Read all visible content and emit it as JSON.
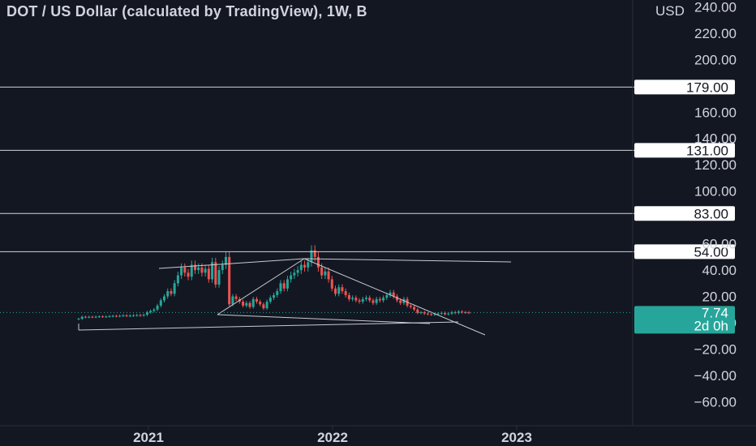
{
  "header": {
    "title": "DOT / US Dollar (calculated by TradingView), 1W, B",
    "currency": "USD"
  },
  "colors": {
    "background": "#131722",
    "up": "#26a69a",
    "down": "#ef5350",
    "text": "#d1d4dc",
    "line": "#d1d4dc",
    "price_tag": "#26a69a"
  },
  "chart_data": {
    "type": "candlestick",
    "title": "DOT / US Dollar (calculated by TradingView), 1W, B",
    "ylabel": "USD",
    "ylim": [
      -70,
      245
    ],
    "y_ticks": [
      240,
      220,
      200,
      160,
      140,
      120,
      100,
      60,
      40,
      20,
      0,
      -20,
      -40,
      -60
    ],
    "y_tick_labels": [
      "240.00",
      "220.00",
      "200.00",
      "160.00",
      "140.00",
      "120.00",
      "100.00",
      "60.00",
      "40.00",
      "20.00",
      "0.00",
      "−20.00",
      "−40.00",
      "−60.00"
    ],
    "x_ticks": [
      "2021",
      "2022",
      "2023"
    ],
    "grid": false,
    "horizontal_levels": [
      {
        "value": 179,
        "label": "179.00"
      },
      {
        "value": 131,
        "label": "131.00"
      },
      {
        "value": 83,
        "label": "83.00"
      },
      {
        "value": 54,
        "label": "54.00"
      }
    ],
    "last_price": {
      "value": 7.74,
      "label": "7.74",
      "countdown": "2d 0h"
    },
    "closes": [
      3,
      4.5,
      4.3,
      4.5,
      4.4,
      4.6,
      4.8,
      4.6,
      4.7,
      5,
      5.2,
      5,
      5.3,
      5.6,
      5.2,
      5.4,
      5.6,
      5.8,
      5.5,
      6,
      8,
      9,
      10,
      13,
      17,
      20,
      24,
      22,
      30,
      36,
      42,
      38,
      35,
      44,
      40,
      42,
      38,
      41,
      33,
      46,
      29,
      40,
      44,
      50,
      14,
      20,
      18,
      16,
      13,
      15,
      12,
      18,
      16,
      14,
      11,
      16,
      19,
      21,
      24,
      30,
      26,
      33,
      36,
      38,
      40,
      44,
      42,
      46,
      55,
      50,
      42,
      36,
      39,
      33,
      26,
      22,
      27,
      24,
      21,
      18,
      19,
      17,
      16,
      18,
      19,
      17,
      15,
      18,
      17,
      19,
      21,
      23,
      20,
      17,
      15,
      18,
      13,
      12,
      10,
      7.5,
      8,
      7,
      6.5,
      6.2,
      6.5,
      7,
      7.5,
      6.5,
      7,
      8,
      7.5,
      8.5,
      8,
      7.8,
      7.74
    ]
  }
}
